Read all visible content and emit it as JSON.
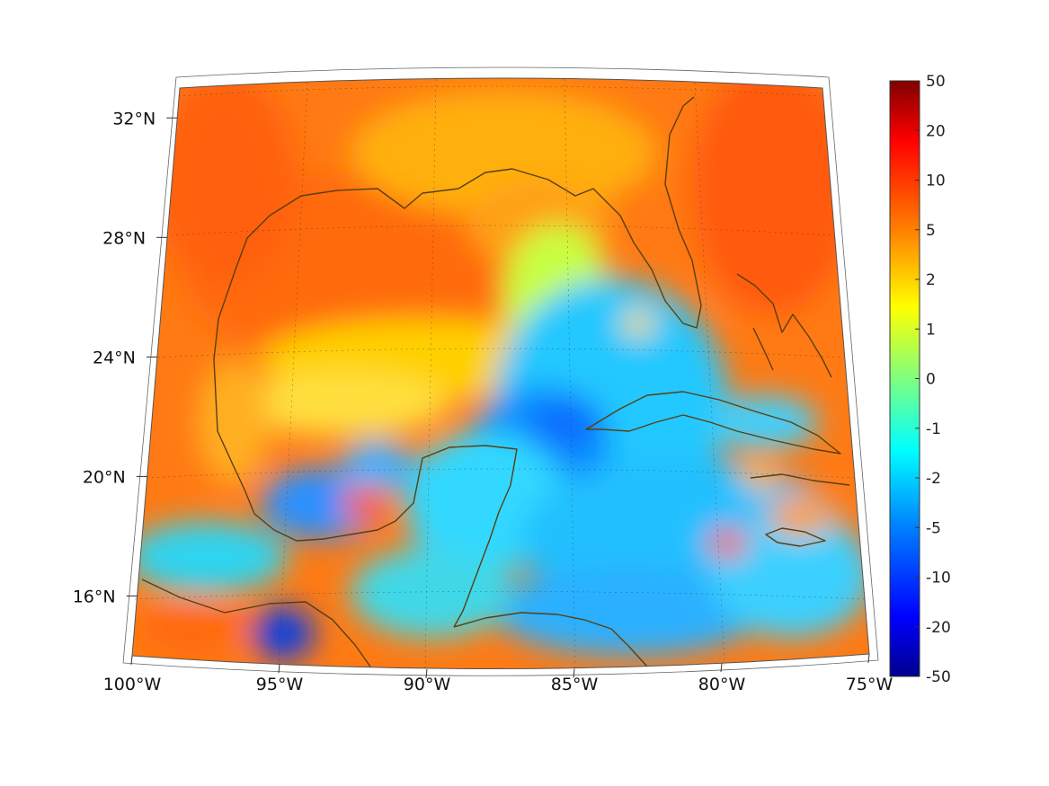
{
  "map": {
    "lon_range": [
      -100,
      -75
    ],
    "lat_range": [
      14,
      33
    ],
    "projection": "conic",
    "lon_ticks": [
      {
        "value": -100,
        "label": "100°W"
      },
      {
        "value": -95,
        "label": "95°W"
      },
      {
        "value": -90,
        "label": "90°W"
      },
      {
        "value": -85,
        "label": "85°W"
      },
      {
        "value": -80,
        "label": "80°W"
      },
      {
        "value": -75,
        "label": "75°W"
      }
    ],
    "lat_ticks": [
      {
        "value": 32,
        "label": "32°N"
      },
      {
        "value": 28,
        "label": "28°N"
      },
      {
        "value": 24,
        "label": "24°N"
      },
      {
        "value": 20,
        "label": "20°N"
      },
      {
        "value": 16,
        "label": "16°N"
      }
    ],
    "coastline_color": "#5a3f12",
    "grid": true
  },
  "colorbar": {
    "colormap": "jet",
    "ticks": [
      {
        "label": "50"
      },
      {
        "label": "20"
      },
      {
        "label": "10"
      },
      {
        "label": "5"
      },
      {
        "label": "2"
      },
      {
        "label": "1"
      },
      {
        "label": "0"
      },
      {
        "label": "-1"
      },
      {
        "label": "-2"
      },
      {
        "label": "-5"
      },
      {
        "label": "-10"
      },
      {
        "label": "-20"
      },
      {
        "label": "-50"
      }
    ]
  }
}
